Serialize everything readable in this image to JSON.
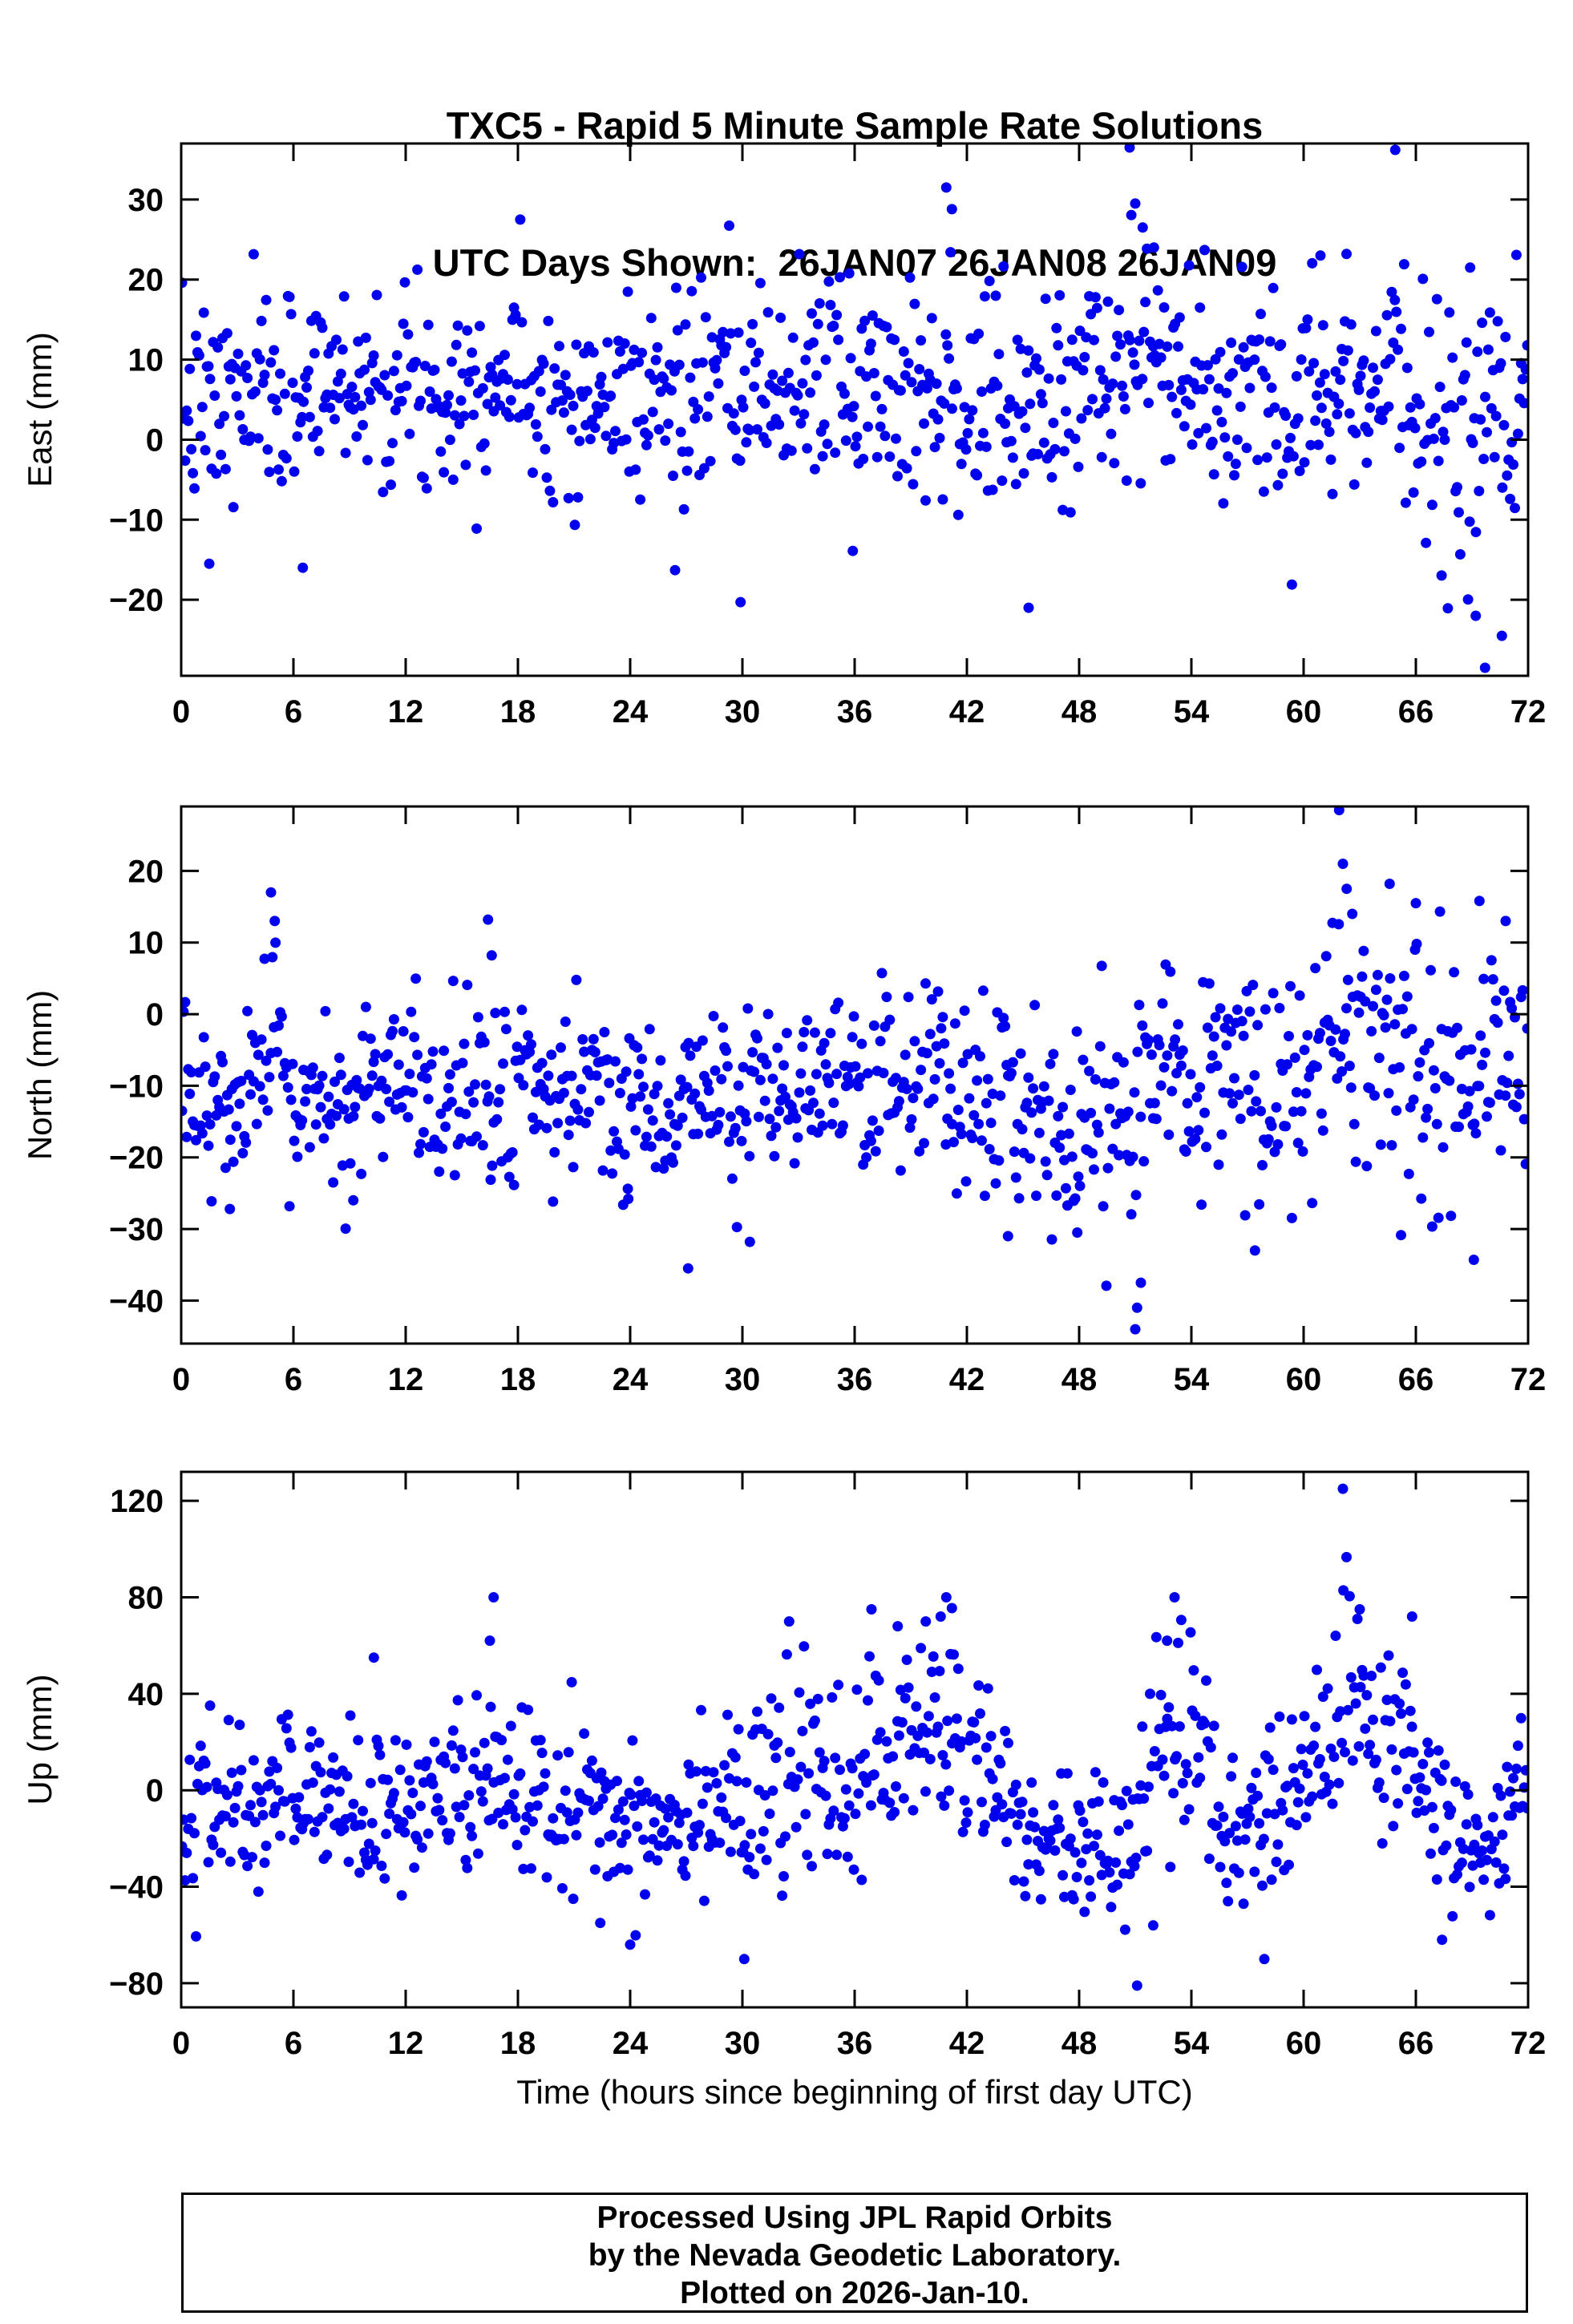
{
  "title": {
    "line1": "TXC5 - Rapid 5 Minute Sample Rate Solutions",
    "line2": "UTC Days Shown:  26JAN07 26JAN08 26JAN09"
  },
  "xlabel": "Time (hours since beginning of first day UTC)",
  "footer": {
    "line1": "Processed Using JPL Rapid Orbits",
    "line2": "by the Nevada Geodetic Laboratory.",
    "line3": "Plotted on 2026-Jan-10."
  },
  "point_color": "#0000ee",
  "frame_color": "#000000",
  "chart_data": [
    {
      "type": "scatter",
      "name": "east",
      "ylabel": "East (mm)",
      "xlim": [
        0,
        72
      ],
      "ylim": [
        -29.5,
        37
      ],
      "xticks": [
        0,
        6,
        12,
        18,
        24,
        30,
        36,
        42,
        48,
        54,
        60,
        66,
        72
      ],
      "yticks": [
        -20,
        -10,
        0,
        10,
        20,
        30
      ],
      "n_points": 864,
      "seed": 7,
      "mean_sd_controls": [
        [
          0,
          3,
          6
        ],
        [
          2,
          4,
          6.5
        ],
        [
          4,
          5,
          6
        ],
        [
          6,
          6,
          6.5
        ],
        [
          8,
          8,
          6
        ],
        [
          10,
          7,
          6
        ],
        [
          12,
          7,
          6
        ],
        [
          14,
          6,
          6
        ],
        [
          16,
          8,
          6
        ],
        [
          18,
          8,
          6
        ],
        [
          20,
          6,
          6
        ],
        [
          22,
          4,
          6
        ],
        [
          24,
          6,
          6
        ],
        [
          26,
          5,
          7
        ],
        [
          28,
          6,
          6
        ],
        [
          30,
          5,
          7
        ],
        [
          32,
          6,
          6
        ],
        [
          34,
          8,
          6.5
        ],
        [
          36,
          7,
          7
        ],
        [
          38,
          8,
          7
        ],
        [
          40,
          8,
          7.5
        ],
        [
          42,
          4,
          7
        ],
        [
          44,
          3,
          7.5
        ],
        [
          46,
          4,
          7
        ],
        [
          48,
          7,
          7
        ],
        [
          50,
          9,
          7
        ],
        [
          52,
          10,
          6.5
        ],
        [
          54,
          7,
          6
        ],
        [
          56,
          4,
          6.5
        ],
        [
          58,
          5,
          7
        ],
        [
          60,
          8,
          7
        ],
        [
          62,
          7,
          7
        ],
        [
          64,
          8,
          7
        ],
        [
          66,
          4,
          8
        ],
        [
          68,
          0,
          8.5
        ],
        [
          70,
          -1,
          9
        ],
        [
          72,
          2,
          8
        ]
      ],
      "outliers": [
        [
          40.9,
          31.5
        ],
        [
          41.2,
          28.8
        ],
        [
          50.7,
          36.5
        ],
        [
          64.9,
          36.2
        ],
        [
          51.0,
          29.5
        ],
        [
          51.4,
          26.5
        ],
        [
          52.0,
          24.0
        ],
        [
          69.7,
          -28.5
        ],
        [
          70.6,
          -24.5
        ],
        [
          69.2,
          -22.0
        ],
        [
          29.9,
          -20.3
        ],
        [
          45.3,
          -21.0
        ],
        [
          26.4,
          -16.3
        ],
        [
          6.5,
          -16.0
        ],
        [
          1.5,
          -15.5
        ],
        [
          68.9,
          21.5
        ],
        [
          60.9,
          23.0
        ],
        [
          35.9,
          -13.9
        ]
      ]
    },
    {
      "type": "scatter",
      "name": "north",
      "ylabel": "North (mm)",
      "xlim": [
        0,
        72
      ],
      "ylim": [
        -46,
        29
      ],
      "xticks": [
        0,
        6,
        12,
        18,
        24,
        30,
        36,
        42,
        48,
        54,
        60,
        66,
        72
      ],
      "yticks": [
        -40,
        -30,
        -20,
        -10,
        0,
        10,
        20
      ],
      "n_points": 864,
      "seed": 13,
      "mean_sd_controls": [
        [
          0,
          -10,
          5
        ],
        [
          1,
          -13,
          4
        ],
        [
          3,
          -14,
          6
        ],
        [
          5,
          -8,
          9
        ],
        [
          6,
          -13,
          7
        ],
        [
          8,
          -13,
          7
        ],
        [
          10,
          -12,
          7
        ],
        [
          12,
          -10,
          6
        ],
        [
          14,
          -12,
          6
        ],
        [
          16,
          -10,
          7
        ],
        [
          18,
          -11,
          7
        ],
        [
          20,
          -13,
          6
        ],
        [
          22,
          -10,
          6
        ],
        [
          24,
          -13,
          6
        ],
        [
          26,
          -13,
          7
        ],
        [
          28,
          -11,
          7
        ],
        [
          30,
          -11,
          7
        ],
        [
          32,
          -12,
          7
        ],
        [
          34,
          -10,
          7
        ],
        [
          36,
          -12,
          7
        ],
        [
          38,
          -10,
          7
        ],
        [
          40,
          -11,
          7
        ],
        [
          42,
          -12,
          7
        ],
        [
          44,
          -13,
          7
        ],
        [
          46,
          -13,
          7
        ],
        [
          48,
          -15,
          7
        ],
        [
          50,
          -14,
          8
        ],
        [
          52,
          -12,
          8
        ],
        [
          54,
          -10,
          7
        ],
        [
          56,
          -9,
          8
        ],
        [
          58,
          -10,
          8
        ],
        [
          60,
          -9,
          8
        ],
        [
          62,
          -5,
          9
        ],
        [
          64,
          -7,
          8
        ],
        [
          66,
          -6,
          8
        ],
        [
          68,
          -10,
          9
        ],
        [
          70,
          -6,
          8
        ],
        [
          72,
          -8,
          7
        ]
      ],
      "outliers": [
        [
          4.8,
          17.0
        ],
        [
          5.0,
          13.0
        ],
        [
          16.4,
          13.2
        ],
        [
          16.6,
          8.2
        ],
        [
          61.9,
          28.5
        ],
        [
          62.1,
          21.0
        ],
        [
          62.3,
          17.5
        ],
        [
          62.6,
          14.0
        ],
        [
          64.6,
          18.2
        ],
        [
          66.0,
          15.5
        ],
        [
          69.4,
          15.8
        ],
        [
          70.8,
          13.0
        ],
        [
          51.0,
          -44.0
        ],
        [
          51.1,
          -41.0
        ],
        [
          51.3,
          -37.5
        ],
        [
          27.1,
          -35.5
        ],
        [
          30.4,
          -31.8
        ],
        [
          44.2,
          -31.0
        ],
        [
          57.4,
          -33.0
        ],
        [
          69.1,
          -34.3
        ],
        [
          2.6,
          -27.2
        ],
        [
          9.2,
          -26.0
        ],
        [
          47.9,
          -30.5
        ],
        [
          23.9,
          -25.8
        ]
      ]
    },
    {
      "type": "scatter",
      "name": "up",
      "ylabel": "Up (mm)",
      "xlim": [
        0,
        72
      ],
      "ylim": [
        -90,
        132
      ],
      "xticks": [
        0,
        6,
        12,
        18,
        24,
        30,
        36,
        42,
        48,
        54,
        60,
        66,
        72
      ],
      "yticks": [
        -80,
        -40,
        0,
        40,
        80,
        120
      ],
      "n_points": 864,
      "seed": 42,
      "mean_sd_controls": [
        [
          0,
          -8,
          16
        ],
        [
          2,
          -5,
          17
        ],
        [
          4,
          -8,
          16
        ],
        [
          6,
          2,
          18
        ],
        [
          8,
          -5,
          17
        ],
        [
          10,
          -12,
          16
        ],
        [
          12,
          -8,
          16
        ],
        [
          14,
          -5,
          17
        ],
        [
          16,
          2,
          20
        ],
        [
          18,
          -2,
          18
        ],
        [
          20,
          2,
          18
        ],
        [
          22,
          -8,
          18
        ],
        [
          24,
          -15,
          18
        ],
        [
          26,
          -8,
          18
        ],
        [
          28,
          -2,
          18
        ],
        [
          30,
          -5,
          20
        ],
        [
          32,
          0,
          20
        ],
        [
          34,
          3,
          20
        ],
        [
          36,
          5,
          20
        ],
        [
          38,
          15,
          22
        ],
        [
          40,
          28,
          22
        ],
        [
          42,
          18,
          22
        ],
        [
          44,
          -5,
          18
        ],
        [
          45,
          -18,
          15
        ],
        [
          47,
          -25,
          14
        ],
        [
          49,
          -22,
          15
        ],
        [
          51,
          -15,
          22
        ],
        [
          52,
          15,
          24
        ],
        [
          53,
          20,
          24
        ],
        [
          54,
          12,
          24
        ],
        [
          55,
          -5,
          22
        ],
        [
          56,
          -18,
          20
        ],
        [
          57,
          -22,
          20
        ],
        [
          58,
          -12,
          22
        ],
        [
          59,
          -5,
          20
        ],
        [
          60,
          0,
          18
        ],
        [
          61,
          15,
          22
        ],
        [
          62,
          30,
          26
        ],
        [
          63,
          28,
          22
        ],
        [
          64,
          22,
          20
        ],
        [
          65,
          15,
          20
        ],
        [
          66,
          8,
          20
        ],
        [
          67,
          -8,
          18
        ],
        [
          68,
          -18,
          16
        ],
        [
          69,
          -22,
          15
        ],
        [
          70,
          -18,
          15
        ],
        [
          71,
          -10,
          15
        ],
        [
          72,
          -5,
          15
        ]
      ],
      "outliers": [
        [
          16.7,
          80.0
        ],
        [
          16.5,
          62.0
        ],
        [
          40.9,
          80.0
        ],
        [
          41.2,
          75.5
        ],
        [
          40.6,
          72.0
        ],
        [
          39.8,
          70.0
        ],
        [
          62.1,
          125.0
        ],
        [
          51.1,
          -81.0
        ],
        [
          30.1,
          -70.0
        ],
        [
          24.0,
          -64.0
        ],
        [
          57.9,
          -70.0
        ],
        [
          67.4,
          -62.0
        ],
        [
          32.5,
          70.0
        ],
        [
          53.1,
          80.0
        ],
        [
          52.7,
          62.0
        ],
        [
          36.9,
          75.0
        ],
        [
          38.3,
          68.0
        ],
        [
          63.0,
          75.0
        ],
        [
          65.8,
          72.0
        ],
        [
          22.4,
          -55.0
        ],
        [
          10.3,
          55.0
        ]
      ]
    }
  ]
}
